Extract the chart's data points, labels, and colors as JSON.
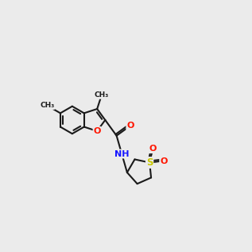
{
  "bg": "#ebebeb",
  "bond_color": "#1a1a1a",
  "lw": 1.5,
  "colors": {
    "O": "#ff1500",
    "N": "#1414ff",
    "S": "#c8c800",
    "C": "#1a1a1a"
  },
  "methyl_label": "CH₃",
  "o_label": "O",
  "n_label": "NH",
  "s_label": "S"
}
